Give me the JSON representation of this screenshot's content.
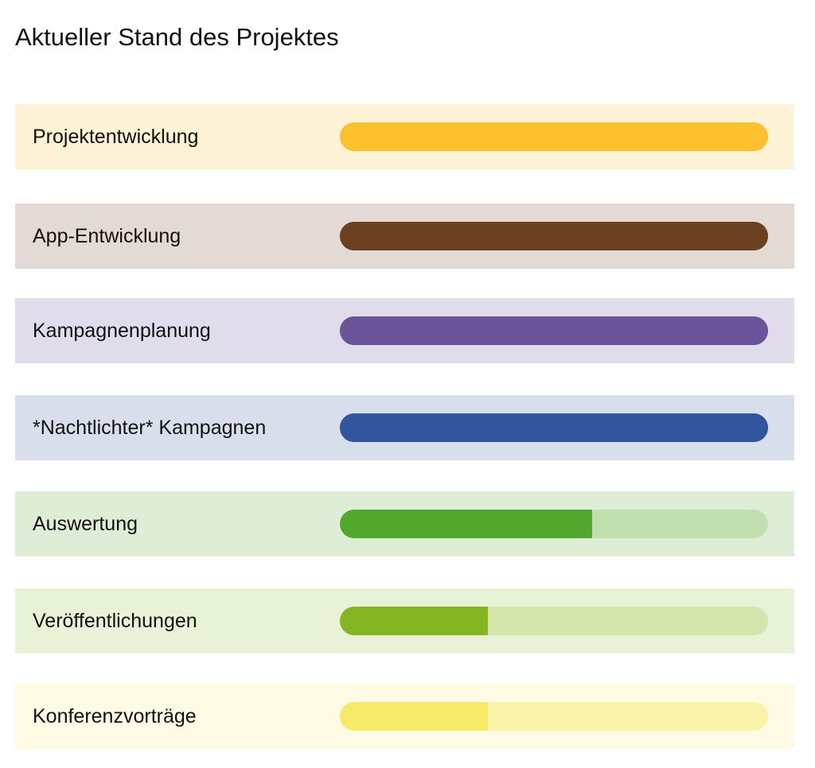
{
  "title": "Aktueller Stand des Projektes",
  "chart_data": {
    "type": "bar",
    "orientation": "horizontal",
    "title": "Aktueller Stand des Projektes",
    "xlim": [
      0,
      1
    ],
    "grid": false,
    "categories": [
      "Projektentwicklung",
      "App-Entwicklung",
      "Kampagnenplanung",
      "*Nachtlichter* Kampagnen",
      "Auswertung",
      "Veröffentlichungen",
      "Konferenzvorträge"
    ],
    "values": [
      1.0,
      1.0,
      1.0,
      1.0,
      0.59,
      0.345,
      0.345
    ],
    "colors": {
      "fill": [
        "#FBC02D",
        "#6B4121",
        "#6A5499",
        "#32559E",
        "#52A82D",
        "#86B524",
        "#F6EA6A"
      ],
      "track": [
        "#FBC02D",
        "#6B4121",
        "#6A5499",
        "#32559E",
        "#C1DFAE",
        "#D4E6AC",
        "#FBF3A8"
      ],
      "row_background": [
        "#FEF3D6",
        "#E4DAD5",
        "#E0DCEC",
        "#D8DEEB",
        "#DDEDD6",
        "#E8F2D6",
        "#FEFAE4"
      ]
    }
  }
}
